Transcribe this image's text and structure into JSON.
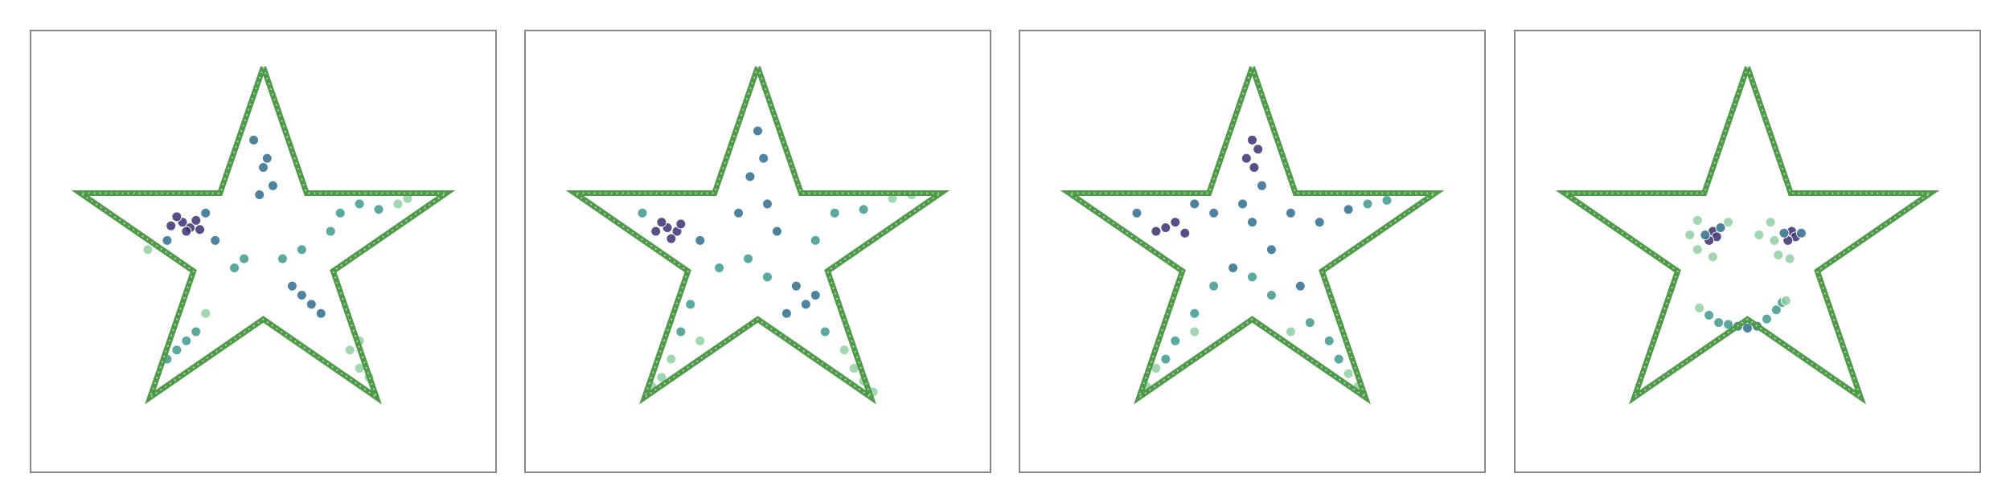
{
  "chart_data": [
    {
      "type": "scatter",
      "xlim": [
        -1.21,
        1.21
      ],
      "ylim": [
        -1.22,
        1.2
      ],
      "outline": {
        "color": "#4f9a4a",
        "x": [
          0,
          0.225,
          0.951,
          0.363,
          0.588,
          0,
          -0.588,
          -0.363,
          -0.951,
          -0.225,
          0
        ],
        "y": [
          1,
          0.309,
          0.309,
          -0.118,
          -0.809,
          -0.382,
          -0.809,
          -0.118,
          0.309,
          0.309,
          1
        ]
      },
      "series": [
        {
          "color": "#3b2f73",
          "x": [
            -0.42,
            -0.38,
            -0.45,
            -0.35,
            -0.4,
            -0.48,
            -0.33
          ],
          "y": [
            0.15,
            0.12,
            0.18,
            0.16,
            0.1,
            0.13,
            0.11
          ]
        },
        {
          "color": "#2f6d8e",
          "x": [
            -0.05,
            0.02,
            0.05,
            -0.02,
            0,
            -0.3,
            -0.25,
            -0.5,
            0.2,
            0.25,
            0.15,
            0.3
          ],
          "y": [
            0.6,
            0.5,
            0.35,
            0.3,
            0.45,
            0.2,
            0.05,
            0.05,
            -0.25,
            -0.3,
            -0.2,
            -0.35
          ]
        },
        {
          "color": "#3c9a8f",
          "x": [
            0.4,
            0.5,
            0.6,
            0.35,
            -0.1,
            -0.15,
            0.1,
            -0.4,
            -0.45,
            -0.35,
            -0.5,
            0.2
          ],
          "y": [
            0.2,
            0.25,
            0.22,
            0.1,
            -0.05,
            -0.1,
            -0.05,
            -0.5,
            -0.55,
            -0.45,
            -0.6,
            0
          ]
        },
        {
          "color": "#8fcfa2",
          "x": [
            0.7,
            0.75,
            0.45,
            0.5,
            0.5,
            -0.3,
            0.55,
            -0.6
          ],
          "y": [
            0.25,
            0.28,
            -0.55,
            -0.65,
            -0.5,
            -0.35,
            -0.7,
            0
          ]
        }
      ]
    },
    {
      "type": "scatter",
      "xlim": [
        -1.21,
        1.21
      ],
      "ylim": [
        -1.22,
        1.2
      ],
      "outline": {
        "color": "#4f9a4a",
        "x": [
          0,
          0.225,
          0.951,
          0.363,
          0.588,
          0,
          -0.588,
          -0.363,
          -0.951,
          -0.225,
          0
        ],
        "y": [
          1,
          0.309,
          0.309,
          -0.118,
          -0.809,
          -0.382,
          -0.809,
          -0.118,
          0.309,
          0.309,
          1
        ]
      },
      "series": [
        {
          "color": "#3b2f73",
          "x": [
            -0.47,
            -0.42,
            -0.5,
            -0.4,
            -0.45,
            -0.53
          ],
          "y": [
            0.12,
            0.1,
            0.15,
            0.14,
            0.06,
            0.1
          ]
        },
        {
          "color": "#2f6d8e",
          "x": [
            0,
            0.03,
            -0.04,
            0.05,
            -0.1,
            0.1,
            -0.3,
            0.2,
            0.25,
            0.3,
            0.15
          ],
          "y": [
            0.65,
            0.5,
            0.4,
            0.25,
            0.2,
            0.1,
            0.05,
            -0.2,
            -0.3,
            -0.25,
            -0.35
          ]
        },
        {
          "color": "#3c9a8f",
          "x": [
            0.4,
            0.55,
            0.3,
            -0.6,
            -0.2,
            -0.05,
            0.05,
            -0.35,
            -0.4,
            0.35
          ],
          "y": [
            0.2,
            0.22,
            0.05,
            0.2,
            -0.1,
            -0.05,
            -0.15,
            -0.3,
            -0.45,
            -0.45
          ]
        },
        {
          "color": "#8fcfa2",
          "x": [
            0.7,
            0.8,
            -0.45,
            -0.5,
            -0.55,
            0.45,
            0.5,
            0.55,
            0.6,
            -0.3
          ],
          "y": [
            0.28,
            0.3,
            -0.6,
            -0.7,
            -0.75,
            -0.55,
            -0.65,
            -0.72,
            -0.78,
            -0.5
          ]
        }
      ]
    },
    {
      "type": "scatter",
      "xlim": [
        -1.21,
        1.21
      ],
      "ylim": [
        -1.22,
        1.2
      ],
      "outline": {
        "color": "#4f9a4a",
        "x": [
          0,
          0.225,
          0.951,
          0.363,
          0.588,
          0,
          -0.588,
          -0.363,
          -0.951,
          -0.225,
          0
        ],
        "y": [
          1,
          0.309,
          0.309,
          -0.118,
          -0.809,
          -0.382,
          -0.809,
          -0.118,
          0.309,
          0.309,
          1
        ]
      },
      "series": [
        {
          "color": "#3b2f73",
          "x": [
            0,
            0.03,
            -0.03,
            0.01,
            -0.45,
            -0.4,
            -0.5,
            -0.35
          ],
          "y": [
            0.6,
            0.55,
            0.5,
            0.45,
            0.12,
            0.15,
            0.1,
            0.09
          ]
        },
        {
          "color": "#2f6d8e",
          "x": [
            0.05,
            -0.05,
            0,
            -0.2,
            0.2,
            0.35,
            -0.3,
            -0.6,
            0.1,
            -0.1,
            0.25,
            0.5
          ],
          "y": [
            0.35,
            0.25,
            0.15,
            0.2,
            0.2,
            0.15,
            0.25,
            0.2,
            0,
            -0.1,
            -0.2,
            0.22
          ]
        },
        {
          "color": "#3c9a8f",
          "x": [
            0.6,
            0.7,
            -0.2,
            -0.3,
            0.1,
            0.3,
            0.4,
            -0.4,
            -0.45,
            0.45,
            0
          ],
          "y": [
            0.25,
            0.27,
            -0.2,
            -0.35,
            -0.25,
            -0.4,
            -0.5,
            -0.5,
            -0.6,
            -0.6,
            -0.15
          ]
        },
        {
          "color": "#8fcfa2",
          "x": [
            -0.5,
            -0.55,
            0.5,
            0.55,
            -0.3,
            0.2
          ],
          "y": [
            -0.65,
            -0.75,
            -0.68,
            -0.75,
            -0.45,
            -0.45
          ]
        }
      ]
    },
    {
      "type": "scatter",
      "xlim": [
        -1.21,
        1.21
      ],
      "ylim": [
        -1.22,
        1.2
      ],
      "outline": {
        "color": "#4f9a4a",
        "x": [
          0,
          0.225,
          0.951,
          0.363,
          0.588,
          0,
          -0.588,
          -0.363,
          -0.951,
          -0.225,
          0
        ],
        "y": [
          1,
          0.309,
          0.309,
          -0.118,
          -0.809,
          -0.382,
          -0.809,
          -0.118,
          0.309,
          0.309,
          1
        ]
      },
      "series": [
        {
          "color": "#3b2f73",
          "x": [
            -0.18,
            -0.16,
            -0.2,
            0.23,
            0.25,
            0.21
          ],
          "y": [
            0.1,
            0.07,
            0.05,
            0.1,
            0.07,
            0.05
          ]
        },
        {
          "color": "#2f6d8e",
          "x": [
            -0.14,
            -0.22,
            0.28,
            0.19,
            -0.05,
            0,
            0.05
          ],
          "y": [
            0.12,
            0.08,
            0.09,
            0.09,
            -0.42,
            -0.43,
            -0.42
          ]
        },
        {
          "color": "#3c9a8f",
          "x": [
            -0.2,
            -0.15,
            0.1,
            0.15,
            -0.1,
            0.18
          ],
          "y": [
            -0.36,
            -0.4,
            -0.38,
            -0.33,
            -0.41,
            -0.29
          ]
        },
        {
          "color": "#8fcfa2",
          "x": [
            -0.26,
            -0.3,
            -0.26,
            -0.18,
            -0.1,
            0.12,
            0.14,
            0.16,
            0.22,
            0.06,
            -0.25,
            0.2
          ],
          "y": [
            0.16,
            0.08,
            0,
            -0.04,
            0.15,
            0.15,
            0.05,
            -0.03,
            -0.05,
            0.08,
            -0.32,
            -0.28
          ]
        }
      ]
    }
  ]
}
